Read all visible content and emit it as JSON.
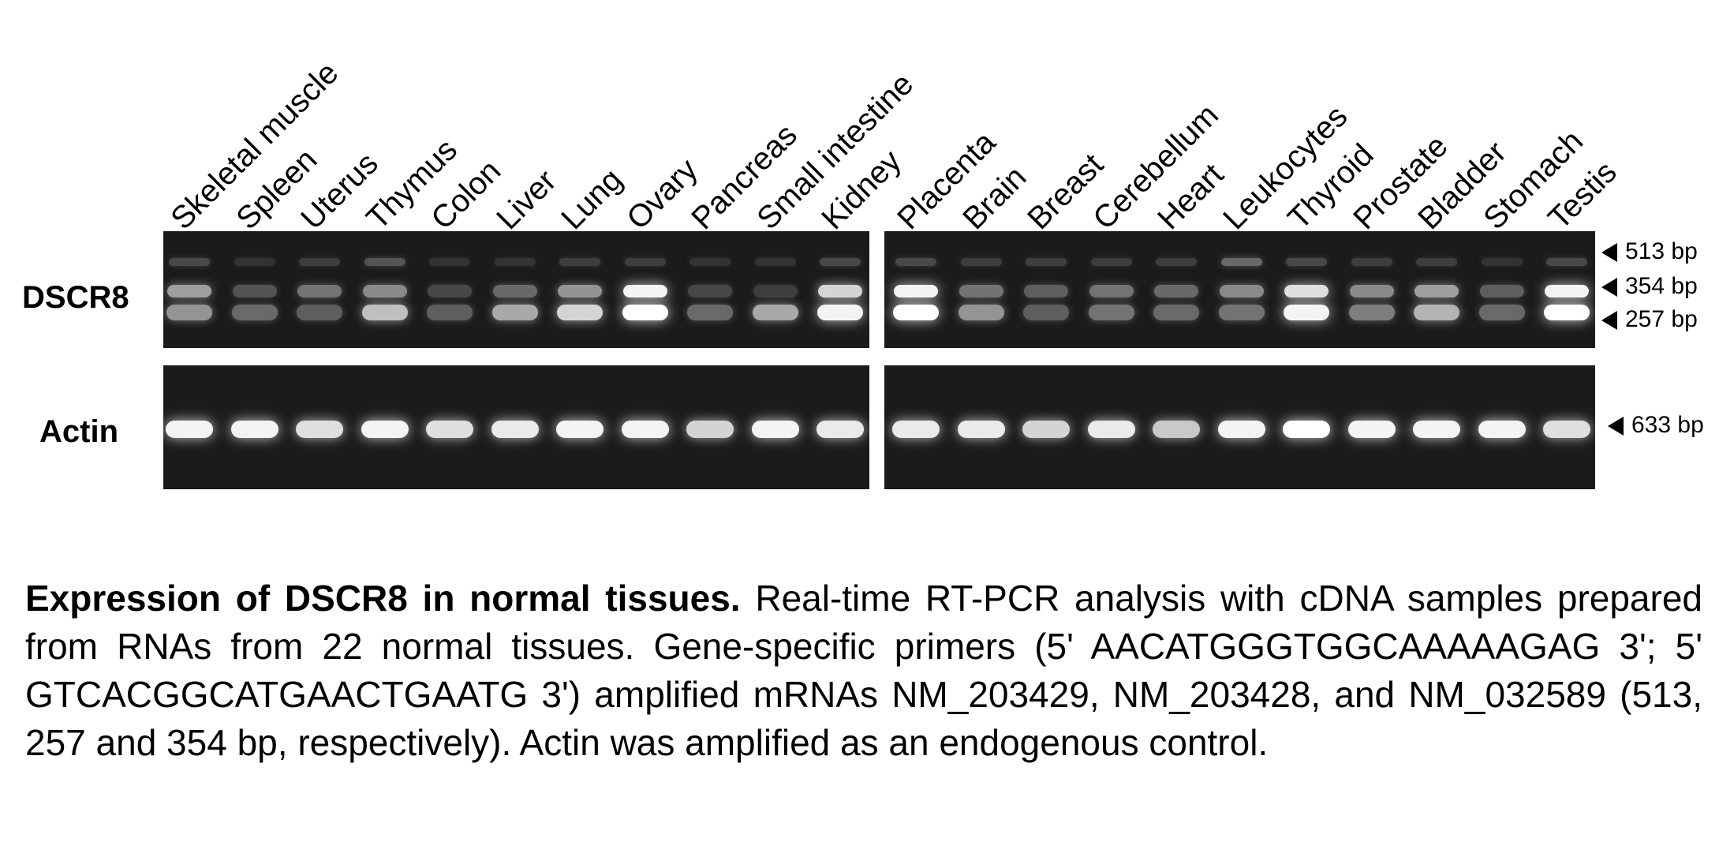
{
  "figure": {
    "lanes_left": [
      "Skeletal muscle",
      "Spleen",
      "Uterus",
      "Thymus",
      "Colon",
      "Liver",
      "Lung",
      "Ovary",
      "Pancreas",
      "Small intestine",
      "Kidney"
    ],
    "lanes_right": [
      "Placenta",
      "Brain",
      "Breast",
      "Cerebellum",
      "Heart",
      "Leukocytes",
      "Thyroid",
      "Prostate",
      "Bladder",
      "Stomach",
      "Testis"
    ],
    "row_labels": {
      "top": "DSCR8",
      "bottom": "Actin"
    },
    "markers_top": [
      "513 bp",
      "354 bp",
      "257 bp"
    ],
    "marker_bottom": "633 bp",
    "band_intensity": {
      "dscr8_513": [
        0.15,
        0.05,
        0.1,
        0.2,
        0.05,
        0.05,
        0.1,
        0.1,
        0.05,
        0.05,
        0.15,
        0.15,
        0.1,
        0.1,
        0.1,
        0.1,
        0.3,
        0.15,
        0.1,
        0.1,
        0.05,
        0.15
      ],
      "dscr8_354": [
        0.55,
        0.2,
        0.35,
        0.45,
        0.15,
        0.3,
        0.5,
        0.95,
        0.15,
        0.1,
        0.8,
        0.95,
        0.35,
        0.25,
        0.35,
        0.3,
        0.45,
        0.85,
        0.45,
        0.55,
        0.25,
        0.95
      ],
      "dscr8_257": [
        0.5,
        0.3,
        0.25,
        0.7,
        0.25,
        0.6,
        0.8,
        1.0,
        0.3,
        0.6,
        0.95,
        1.0,
        0.5,
        0.25,
        0.35,
        0.3,
        0.35,
        0.95,
        0.4,
        0.65,
        0.3,
        1.0
      ],
      "actin_633": [
        0.95,
        0.95,
        0.85,
        0.95,
        0.85,
        0.9,
        0.95,
        0.95,
        0.8,
        0.95,
        0.9,
        0.9,
        0.9,
        0.8,
        0.9,
        0.75,
        0.95,
        1.0,
        0.95,
        0.95,
        0.95,
        0.85
      ]
    }
  },
  "caption": {
    "title": "Expression of DSCR8 in normal tissues.",
    "body": "Real-time RT-PCR  analysis with cDNA samples prepared from RNAs from 22 normal tissues. Gene-specific primers (5' AACATGGGTGGCAAAAAGAG 3'; 5' GTCACGGCATGAACTGAATG 3') amplified mRNAs NM_203429, NM_203428, and NM_032589 (513, 257 and 354 bp, respectively). Actin was amplified as an endogenous control."
  }
}
